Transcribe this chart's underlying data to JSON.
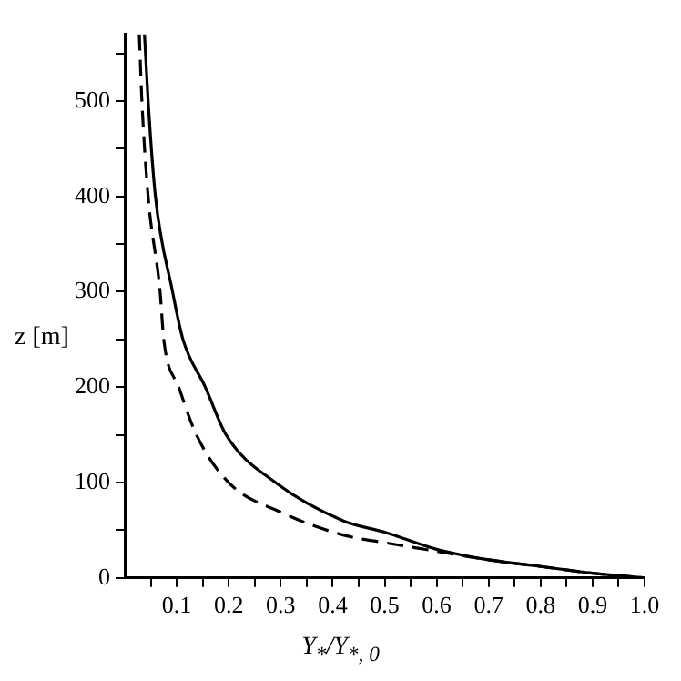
{
  "chart_data": {
    "type": "line",
    "xlabel": "Y$_{*}$/Y$_{*, 0}$",
    "ylabel": "z [m]",
    "xlim": [
      0,
      1
    ],
    "ylim": [
      0,
      570
    ],
    "xticks": [
      {
        "value": 0.05,
        "label": null
      },
      0.1,
      {
        "value": 0.15,
        "label": null
      },
      0.2,
      {
        "value": 0.25,
        "label": null
      },
      0.3,
      {
        "value": 0.35,
        "label": null
      },
      0.4,
      {
        "value": 0.45,
        "label": null
      },
      0.5,
      {
        "value": 0.55,
        "label": null
      },
      0.6,
      {
        "value": 0.65,
        "label": null
      },
      0.7,
      {
        "value": 0.75,
        "label": null
      },
      0.8,
      {
        "value": 0.85,
        "label": null
      },
      0.9,
      {
        "value": 0.95,
        "label": null
      },
      {
        "value": 1,
        "label": "1.0"
      }
    ],
    "yticks": [
      0,
      {
        "value": 50,
        "label": null
      },
      100,
      {
        "value": 150,
        "label": null
      },
      200,
      {
        "value": 250,
        "label": null
      },
      300,
      {
        "value": 350,
        "label": null
      },
      400,
      {
        "value": 450,
        "label": null
      },
      500,
      {
        "value": 550,
        "label": null
      }
    ],
    "grid": false,
    "legend": false,
    "marker": "none",
    "series": [
      {
        "color": "#000000",
        "line_style": "solid",
        "x": [
          0.038,
          0.045,
          0.059,
          0.092,
          0.112,
          0.155,
          0.195,
          0.29,
          0.42,
          0.5,
          0.6,
          0.7,
          0.8,
          0.9,
          1.0
        ],
        "values": [
          570,
          500,
          400,
          300,
          250,
          200,
          150,
          100,
          60,
          48,
          30,
          19,
          12,
          5,
          0
        ]
      },
      {
        "color": "#000000",
        "line_style": "dashed",
        "x": [
          0.028,
          0.033,
          0.045,
          0.068,
          0.075,
          0.104,
          0.138,
          0.2,
          0.3,
          0.42,
          0.5,
          0.6,
          0.7,
          0.8,
          0.9,
          1.0
        ],
        "values": [
          570,
          500,
          400,
          300,
          250,
          200,
          150,
          100,
          69,
          45,
          37,
          28,
          19,
          12,
          5,
          0
        ]
      }
    ]
  }
}
